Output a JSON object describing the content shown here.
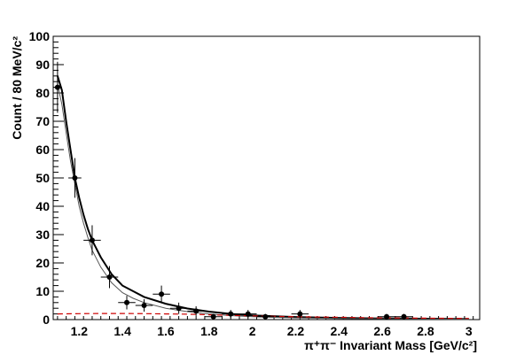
{
  "chart_data": {
    "type": "scatter",
    "xlabel": "π⁺π⁻ Invariant Mass [GeV/c²]",
    "ylabel": "Count / 80 MeV/c²",
    "xlim": [
      1.08,
      3.05
    ],
    "ylim": [
      0,
      100
    ],
    "xticks": [
      1.2,
      1.4,
      1.6,
      1.8,
      2.0,
      2.2,
      2.4,
      2.6,
      2.8,
      3.0
    ],
    "xtick_labels": [
      "1.2",
      "1.4",
      "1.6",
      "1.8",
      "2",
      "2.2",
      "2.4",
      "2.6",
      "2.8",
      "3"
    ],
    "yticks": [
      0,
      10,
      20,
      30,
      40,
      50,
      60,
      70,
      80,
      90,
      100
    ],
    "ytick_labels": [
      "0",
      "10",
      "20",
      "30",
      "40",
      "50",
      "60",
      "70",
      "80",
      "90",
      "100"
    ],
    "grid": false,
    "points": [
      {
        "x": 1.1,
        "y": 82,
        "yerr": 9.0,
        "xerr": 0.02
      },
      {
        "x": 1.18,
        "y": 50,
        "yerr": 7.0,
        "xerr": 0.03
      },
      {
        "x": 1.26,
        "y": 28,
        "yerr": 5.3,
        "xerr": 0.04
      },
      {
        "x": 1.34,
        "y": 15,
        "yerr": 3.9,
        "xerr": 0.04
      },
      {
        "x": 1.42,
        "y": 6,
        "yerr": 2.4,
        "xerr": 0.04
      },
      {
        "x": 1.5,
        "y": 5,
        "yerr": 2.2,
        "xerr": 0.04
      },
      {
        "x": 1.58,
        "y": 9,
        "yerr": 3.0,
        "xerr": 0.04
      },
      {
        "x": 1.66,
        "y": 4,
        "yerr": 2.0,
        "xerr": 0.04
      },
      {
        "x": 1.74,
        "y": 3,
        "yerr": 1.7,
        "xerr": 0.04
      },
      {
        "x": 1.82,
        "y": 1,
        "yerr": 1.0,
        "xerr": 0.04
      },
      {
        "x": 1.9,
        "y": 2,
        "yerr": 1.4,
        "xerr": 0.04
      },
      {
        "x": 1.98,
        "y": 2,
        "yerr": 1.4,
        "xerr": 0.04
      },
      {
        "x": 2.06,
        "y": 1,
        "yerr": 1.0,
        "xerr": 0.04
      },
      {
        "x": 2.22,
        "y": 2,
        "yerr": 1.4,
        "xerr": 0.04
      },
      {
        "x": 2.62,
        "y": 1,
        "yerr": 1.0,
        "xerr": 0.04
      },
      {
        "x": 2.7,
        "y": 1,
        "yerr": 1.0,
        "xerr": 0.04
      }
    ],
    "series": [
      {
        "style": "solid-thick",
        "color": "#000000",
        "x": [
          1.1,
          1.12,
          1.14,
          1.16,
          1.18,
          1.2,
          1.22,
          1.24,
          1.26,
          1.3,
          1.35,
          1.4,
          1.45,
          1.5,
          1.6,
          1.7,
          1.8,
          1.9,
          2.0,
          2.2,
          2.4,
          2.6,
          2.8,
          3.0
        ],
        "y": [
          86,
          81,
          70,
          60,
          50,
          43,
          37,
          32,
          28,
          22,
          16,
          12,
          10,
          8,
          5.6,
          3.9,
          2.8,
          2.0,
          1.5,
          0.9,
          0.6,
          0.4,
          0.3,
          0.2
        ]
      },
      {
        "style": "solid-thin",
        "color": "#555555",
        "x": [
          1.1,
          1.12,
          1.14,
          1.16,
          1.18,
          1.2,
          1.22,
          1.24,
          1.26,
          1.3,
          1.35,
          1.4,
          1.45,
          1.5,
          1.6,
          1.7,
          1.8,
          1.9,
          2.0,
          2.2,
          2.4,
          2.6,
          2.8,
          3.0
        ],
        "y": [
          83,
          76,
          66,
          56,
          48,
          40,
          34,
          29,
          24.5,
          18.5,
          13,
          9.5,
          7.5,
          6,
          4,
          2.8,
          2.0,
          1.4,
          1.0,
          0.6,
          0.4,
          0.3,
          0.2,
          0.1
        ]
      },
      {
        "style": "dashed",
        "color": "#cc0000",
        "x": [
          1.1,
          1.2,
          1.3,
          1.4,
          1.5,
          1.6,
          1.7,
          1.8,
          1.9,
          2.0,
          2.2,
          2.4,
          2.6,
          2.8,
          3.0
        ],
        "y": [
          2.0,
          2.1,
          2.15,
          2.15,
          2.1,
          2.0,
          1.9,
          1.7,
          1.5,
          1.3,
          1.0,
          0.8,
          0.6,
          0.5,
          0.4
        ]
      }
    ]
  }
}
